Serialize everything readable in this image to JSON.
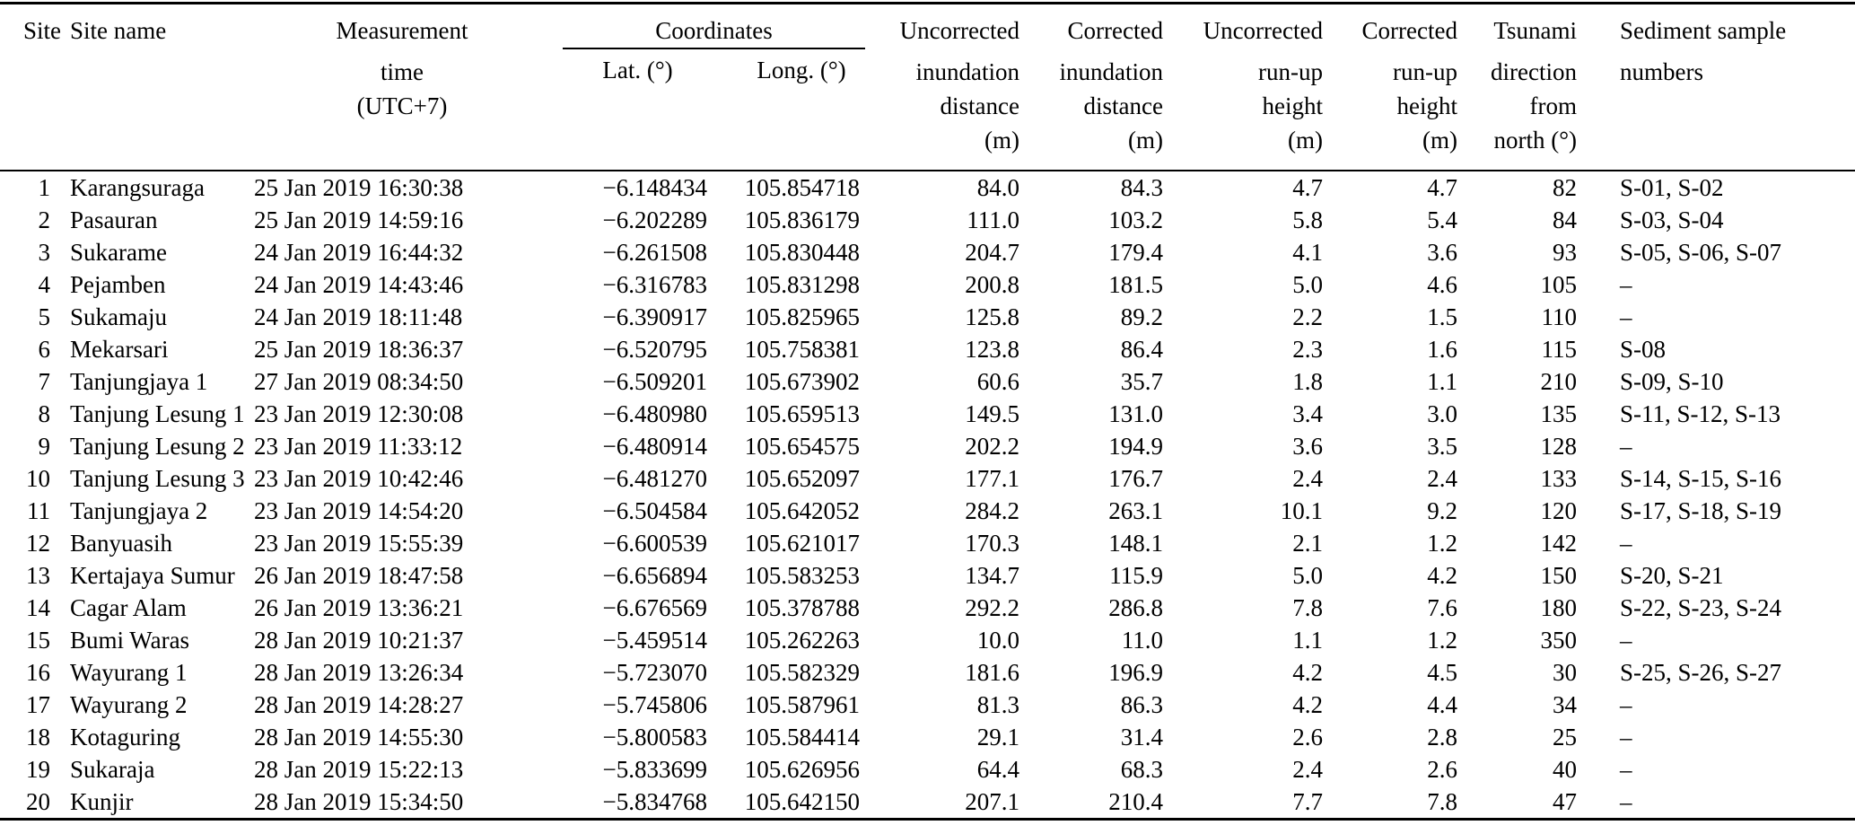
{
  "table": {
    "columns": [
      "site",
      "site-name",
      "measurement-time",
      "latitude",
      "longitude",
      "uncorrected-inundation-distance",
      "corrected-inundation-distance",
      "uncorrected-runup-height",
      "corrected-runup-height",
      "tsunami-direction",
      "sediment-samples"
    ],
    "header": {
      "site": "Site",
      "site_name": "Site name",
      "measurement": [
        "Measurement",
        "time",
        "(UTC+7)"
      ],
      "coordinates": "Coordinates",
      "lat": "Lat. (°)",
      "long": "Long. (°)",
      "uncorrected_inundation": [
        "Uncorrected",
        "inundation",
        "distance",
        "(m)"
      ],
      "corrected_inundation": [
        "Corrected",
        "inundation",
        "distance",
        "(m)"
      ],
      "uncorrected_runup": [
        "Uncorrected",
        "run-up",
        "height",
        "(m)"
      ],
      "corrected_runup": [
        "Corrected",
        "run-up",
        "height",
        "(m)"
      ],
      "tsunami_direction": [
        "Tsunami",
        "direction",
        "from",
        "north (°)"
      ],
      "sediment": [
        "Sediment sample",
        "numbers"
      ]
    },
    "rows": [
      [
        "1",
        "Karangsuraga",
        "25 Jan 2019 16:30:38",
        "−6.148434",
        "105.854718",
        "84.0",
        "84.3",
        "4.7",
        "4.7",
        "82",
        "S-01, S-02"
      ],
      [
        "2",
        "Pasauran",
        "25 Jan 2019 14:59:16",
        "−6.202289",
        "105.836179",
        "111.0",
        "103.2",
        "5.8",
        "5.4",
        "84",
        "S-03, S-04"
      ],
      [
        "3",
        "Sukarame",
        "24 Jan 2019 16:44:32",
        "−6.261508",
        "105.830448",
        "204.7",
        "179.4",
        "4.1",
        "3.6",
        "93",
        "S-05, S-06, S-07"
      ],
      [
        "4",
        "Pejamben",
        "24 Jan 2019 14:43:46",
        "−6.316783",
        "105.831298",
        "200.8",
        "181.5",
        "5.0",
        "4.6",
        "105",
        "–"
      ],
      [
        "5",
        "Sukamaju",
        "24 Jan 2019 18:11:48",
        "−6.390917",
        "105.825965",
        "125.8",
        "89.2",
        "2.2",
        "1.5",
        "110",
        "–"
      ],
      [
        "6",
        "Mekarsari",
        "25 Jan 2019 18:36:37",
        "−6.520795",
        "105.758381",
        "123.8",
        "86.4",
        "2.3",
        "1.6",
        "115",
        "S-08"
      ],
      [
        "7",
        "Tanjungjaya 1",
        "27 Jan 2019 08:34:50",
        "−6.509201",
        "105.673902",
        "60.6",
        "35.7",
        "1.8",
        "1.1",
        "210",
        "S-09, S-10"
      ],
      [
        "8",
        "Tanjung Lesung 1",
        "23 Jan 2019 12:30:08",
        "−6.480980",
        "105.659513",
        "149.5",
        "131.0",
        "3.4",
        "3.0",
        "135",
        "S-11, S-12, S-13"
      ],
      [
        "9",
        "Tanjung Lesung 2",
        "23 Jan 2019 11:33:12",
        "−6.480914",
        "105.654575",
        "202.2",
        "194.9",
        "3.6",
        "3.5",
        "128",
        "–"
      ],
      [
        "10",
        "Tanjung Lesung 3",
        "23 Jan 2019 10:42:46",
        "−6.481270",
        "105.652097",
        "177.1",
        "176.7",
        "2.4",
        "2.4",
        "133",
        "S-14, S-15, S-16"
      ],
      [
        "11",
        "Tanjungjaya 2",
        "23 Jan 2019 14:54:20",
        "−6.504584",
        "105.642052",
        "284.2",
        "263.1",
        "10.1",
        "9.2",
        "120",
        "S-17, S-18, S-19"
      ],
      [
        "12",
        "Banyuasih",
        "23 Jan 2019 15:55:39",
        "−6.600539",
        "105.621017",
        "170.3",
        "148.1",
        "2.1",
        "1.2",
        "142",
        "–"
      ],
      [
        "13",
        "Kertajaya Sumur",
        "26 Jan 2019 18:47:58",
        "−6.656894",
        "105.583253",
        "134.7",
        "115.9",
        "5.0",
        "4.2",
        "150",
        "S-20, S-21"
      ],
      [
        "14",
        "Cagar Alam",
        "26 Jan 2019 13:36:21",
        "−6.676569",
        "105.378788",
        "292.2",
        "286.8",
        "7.8",
        "7.6",
        "180",
        "S-22, S-23, S-24"
      ],
      [
        "15",
        "Bumi Waras",
        "28 Jan 2019 10:21:37",
        "−5.459514",
        "105.262263",
        "10.0",
        "11.0",
        "1.1",
        "1.2",
        "350",
        "–"
      ],
      [
        "16",
        "Wayurang 1",
        "28 Jan 2019 13:26:34",
        "−5.723070",
        "105.582329",
        "181.6",
        "196.9",
        "4.2",
        "4.5",
        "30",
        "S-25, S-26, S-27"
      ],
      [
        "17",
        "Wayurang 2",
        "28 Jan 2019 14:28:27",
        "−5.745806",
        "105.587961",
        "81.3",
        "86.3",
        "4.2",
        "4.4",
        "34",
        "–"
      ],
      [
        "18",
        "Kotaguring",
        "28 Jan 2019 14:55:30",
        "−5.800583",
        "105.584414",
        "29.1",
        "31.4",
        "2.6",
        "2.8",
        "25",
        "–"
      ],
      [
        "19",
        "Sukaraja",
        "28 Jan 2019 15:22:13",
        "−5.833699",
        "105.626956",
        "64.4",
        "68.3",
        "2.4",
        "2.6",
        "40",
        "–"
      ],
      [
        "20",
        "Kunjir",
        "28 Jan 2019 15:34:50",
        "−5.834768",
        "105.642150",
        "207.1",
        "210.4",
        "7.7",
        "7.8",
        "47",
        "–"
      ]
    ]
  }
}
